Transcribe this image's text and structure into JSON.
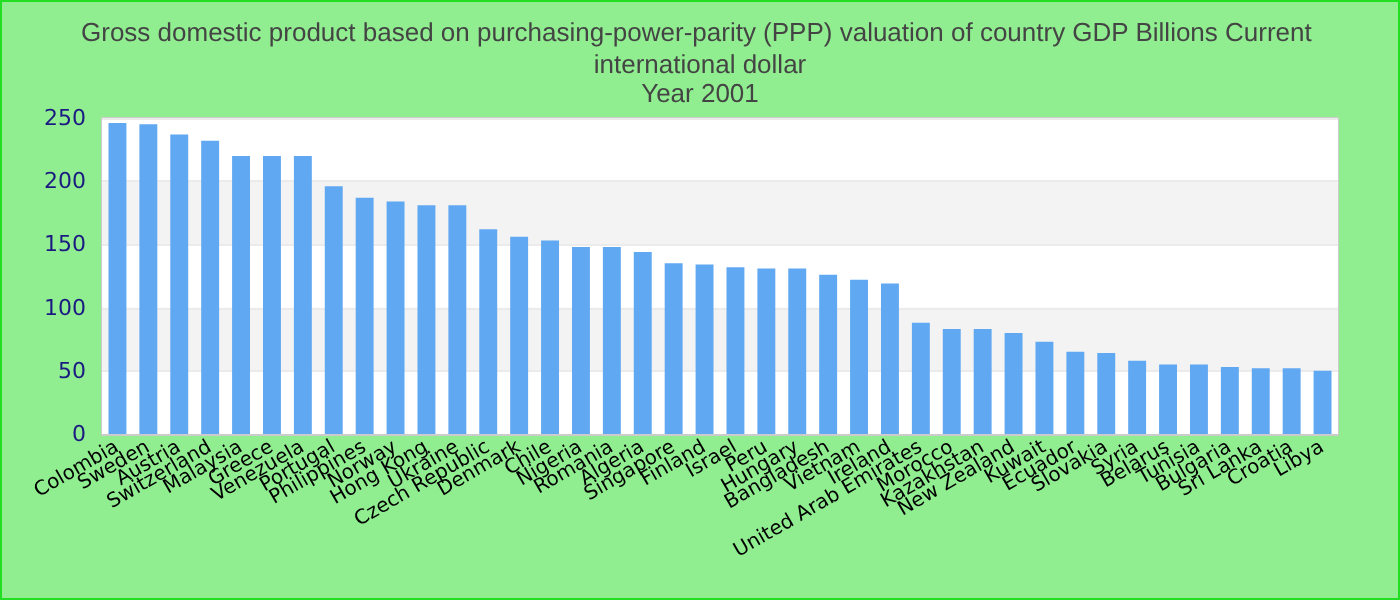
{
  "chart_data": {
    "type": "bar",
    "title": "Gross domestic product based on purchasing-power-parity (PPP) valuation of country GDP Billions Current international dollar",
    "subtitle": "Year 2001",
    "categories": [
      "Colombia",
      "Sweden",
      "Austria",
      "Switzerland",
      "Malaysia",
      "Greece",
      "Venezuela",
      "Portugal",
      "Philippines",
      "Norway",
      "Hong Kong",
      "Ukraine",
      "Czech Republic",
      "Denmark",
      "Chile",
      "Nigeria",
      "Romania",
      "Algeria",
      "Singapore",
      "Finland",
      "Israel",
      "Peru",
      "Hungary",
      "Bangladesh",
      "Vietnam",
      "Ireland",
      "United Arab Emirates",
      "Morocco",
      "Kazakhstan",
      "New Zealand",
      "Kuwait",
      "Ecuador",
      "Slovakia",
      "Syria",
      "Belarus",
      "Tunisia",
      "Bulgaria",
      "Sri Lanka",
      "Croatia",
      "Libya"
    ],
    "values": [
      246,
      245,
      237,
      232,
      220,
      220,
      220,
      196,
      187,
      184,
      181,
      181,
      162,
      156,
      153,
      148,
      148,
      144,
      135,
      134,
      132,
      131,
      131,
      126,
      122,
      119,
      88,
      83,
      83,
      80,
      73,
      65,
      64,
      58,
      55,
      55,
      53,
      52,
      52,
      50
    ],
    "color": "#60a8f2",
    "ylim": [
      0,
      250
    ],
    "yticks": [
      0,
      50,
      100,
      150,
      200,
      250
    ],
    "grid": "y"
  }
}
